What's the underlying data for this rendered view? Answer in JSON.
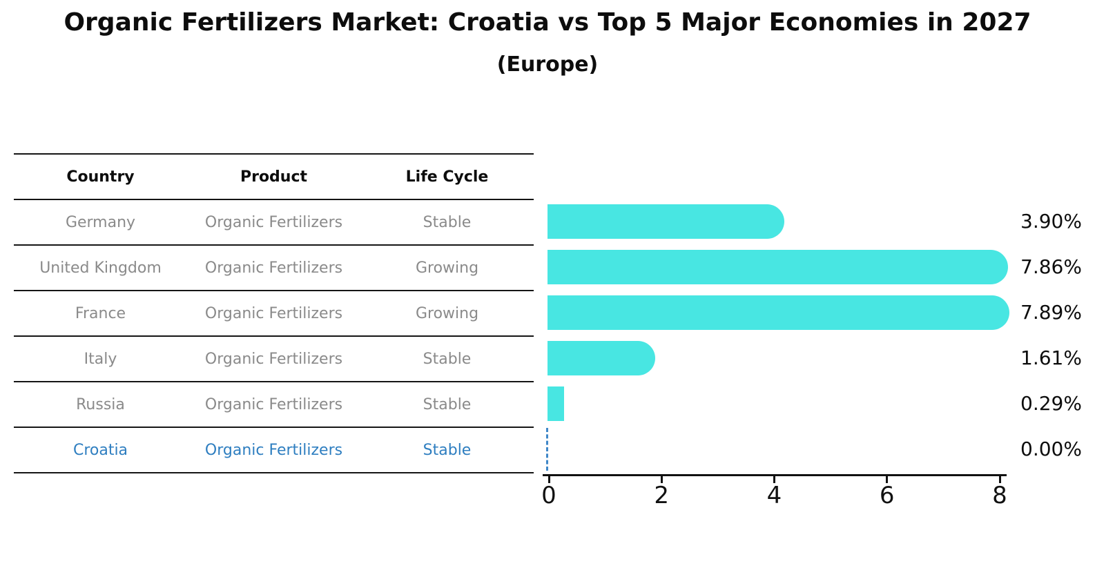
{
  "title": "Organic Fertilizers Market: Croatia vs Top 5 Major Economies in 2027",
  "subtitle": "(Europe)",
  "table": {
    "headers": [
      "Country",
      "Product",
      "Life Cycle"
    ],
    "rows": [
      {
        "country": "Germany",
        "product": "Organic Fertilizers",
        "life_cycle": "Stable",
        "highlighted": false
      },
      {
        "country": "United Kingdom",
        "product": "Organic Fertilizers",
        "life_cycle": "Growing",
        "highlighted": false
      },
      {
        "country": "France",
        "product": "Organic Fertilizers",
        "life_cycle": "Growing",
        "highlighted": false
      },
      {
        "country": "Italy",
        "product": "Organic Fertilizers",
        "life_cycle": "Stable",
        "highlighted": false
      },
      {
        "country": "Russia",
        "product": "Organic Fertilizers",
        "life_cycle": "Stable",
        "highlighted": true
      }
    ],
    "highlight_row": {
      "country": "Croatia",
      "product": "Organic Fertilizers",
      "life_cycle": "Stable",
      "highlighted": true
    }
  },
  "chart_data": {
    "type": "bar",
    "orientation": "horizontal",
    "categories": [
      "Germany",
      "United Kingdom",
      "France",
      "Italy",
      "Russia",
      "Croatia"
    ],
    "values": [
      3.9,
      7.86,
      7.89,
      1.61,
      0.29,
      0.0
    ],
    "value_labels": [
      "3.90%",
      "7.86%",
      "7.89%",
      "1.61%",
      "0.29%",
      "0.00%"
    ],
    "xticks": [
      0,
      2,
      4,
      6,
      8
    ],
    "xlim": [
      0,
      8.2
    ],
    "grid": false,
    "legend_position": "none",
    "title": "Organic Fertilizers Market: Croatia vs Top 5 Major Economies in 2027 (Europe)",
    "xlabel": "",
    "ylabel": "",
    "bar_color": "#48e6e2",
    "highlight_line_color": "#3f87c8",
    "highlight_text_color": "#2e7ec0"
  }
}
